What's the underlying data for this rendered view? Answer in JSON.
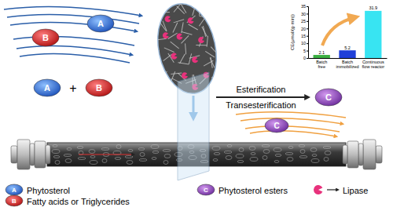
{
  "chart_data": {
    "type": "bar",
    "y_label": "CE(μmol/(g·min))",
    "categories": [
      "Batch free",
      "Batch immobilized",
      "Continuous flow reactor"
    ],
    "values": [
      2.1,
      5.2,
      31.9
    ],
    "colors": [
      "#3cb043",
      "#2040d8",
      "#38e4f2"
    ],
    "ylim": [
      0,
      35
    ],
    "yticks": [
      0,
      5,
      10,
      15,
      20,
      25,
      30,
      35
    ],
    "data_labels": true
  },
  "diagram": {
    "molecules": {
      "A": "A",
      "B": "B",
      "C": "C"
    },
    "plus": "+",
    "reactions": [
      "Esterification",
      "Transesterification"
    ],
    "legend": [
      {
        "symbol": "A",
        "text": "Phytosterol"
      },
      {
        "symbol": "B",
        "text": "Fatty acids or Triglycerides"
      },
      {
        "symbol": "C",
        "text": "Phytosterol esters"
      },
      {
        "text": "Lipase"
      }
    ]
  }
}
